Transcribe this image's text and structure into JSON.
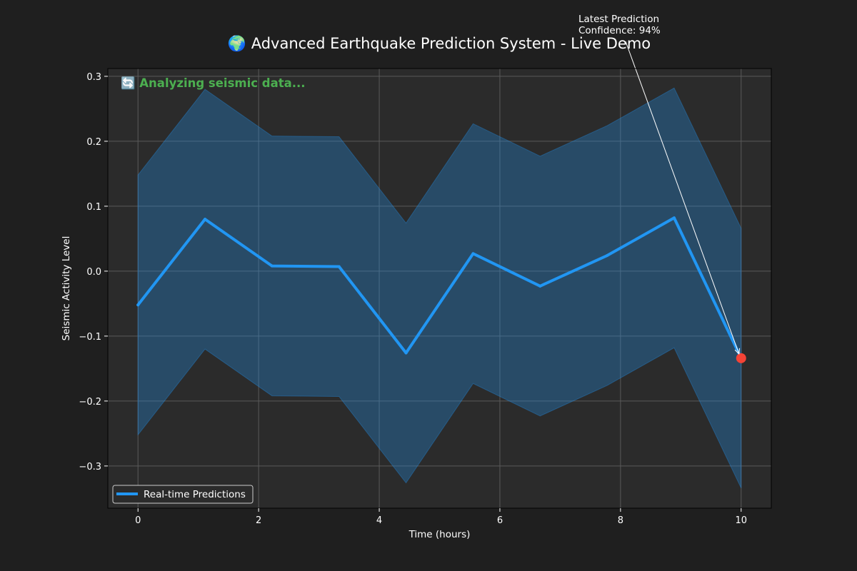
{
  "chart_data": {
    "type": "line",
    "title": "🌍 Advanced Earthquake Prediction System - Live Demo",
    "status_text": "🔄 Analyzing seismic data...",
    "xlabel": "Time (hours)",
    "ylabel": "Seismic Activity Level",
    "xlim": [
      -0.5,
      10.5
    ],
    "ylim": [
      -0.365,
      0.312
    ],
    "x_ticks": [
      0,
      2,
      4,
      6,
      8,
      10
    ],
    "y_ticks": [
      -0.3,
      -0.2,
      -0.1,
      0.0,
      0.1,
      0.2,
      0.3
    ],
    "x_tick_labels": [
      "0",
      "2",
      "4",
      "6",
      "8",
      "10"
    ],
    "y_tick_labels": [
      "−0.3",
      "−0.2",
      "−0.1",
      "0.0",
      "0.1",
      "0.2",
      "0.3"
    ],
    "grid": true,
    "legend_position": "lower-left",
    "x": [
      0,
      1.111,
      2.222,
      3.333,
      4.444,
      5.556,
      6.667,
      7.778,
      8.889,
      10
    ],
    "series": [
      {
        "name": "Real-time Predictions",
        "color": "#2196f3",
        "values": [
          -0.052,
          0.08,
          0.008,
          0.007,
          -0.126,
          0.027,
          -0.023,
          0.024,
          0.082,
          -0.134
        ]
      }
    ],
    "confidence_band": {
      "color": "#2196f3",
      "upper": [
        0.148,
        0.28,
        0.208,
        0.207,
        0.074,
        0.227,
        0.177,
        0.224,
        0.282,
        0.066
      ],
      "lower": [
        -0.252,
        -0.12,
        -0.192,
        -0.193,
        -0.326,
        -0.173,
        -0.223,
        -0.176,
        -0.118,
        -0.334
      ]
    },
    "latest_point": {
      "x": 10,
      "y": -0.134,
      "color": "#f44336"
    },
    "annotation": {
      "lines": [
        "Latest Prediction",
        "Confidence: 94%"
      ],
      "arrow_target": {
        "x": 10,
        "y": -0.134
      },
      "text_anchor_data": {
        "x": 8.07,
        "y": 0.357
      }
    },
    "colors": {
      "background": "#1f1f1f",
      "plot_background": "#2b2b2b",
      "grid": "#5a5a5a"
    }
  }
}
